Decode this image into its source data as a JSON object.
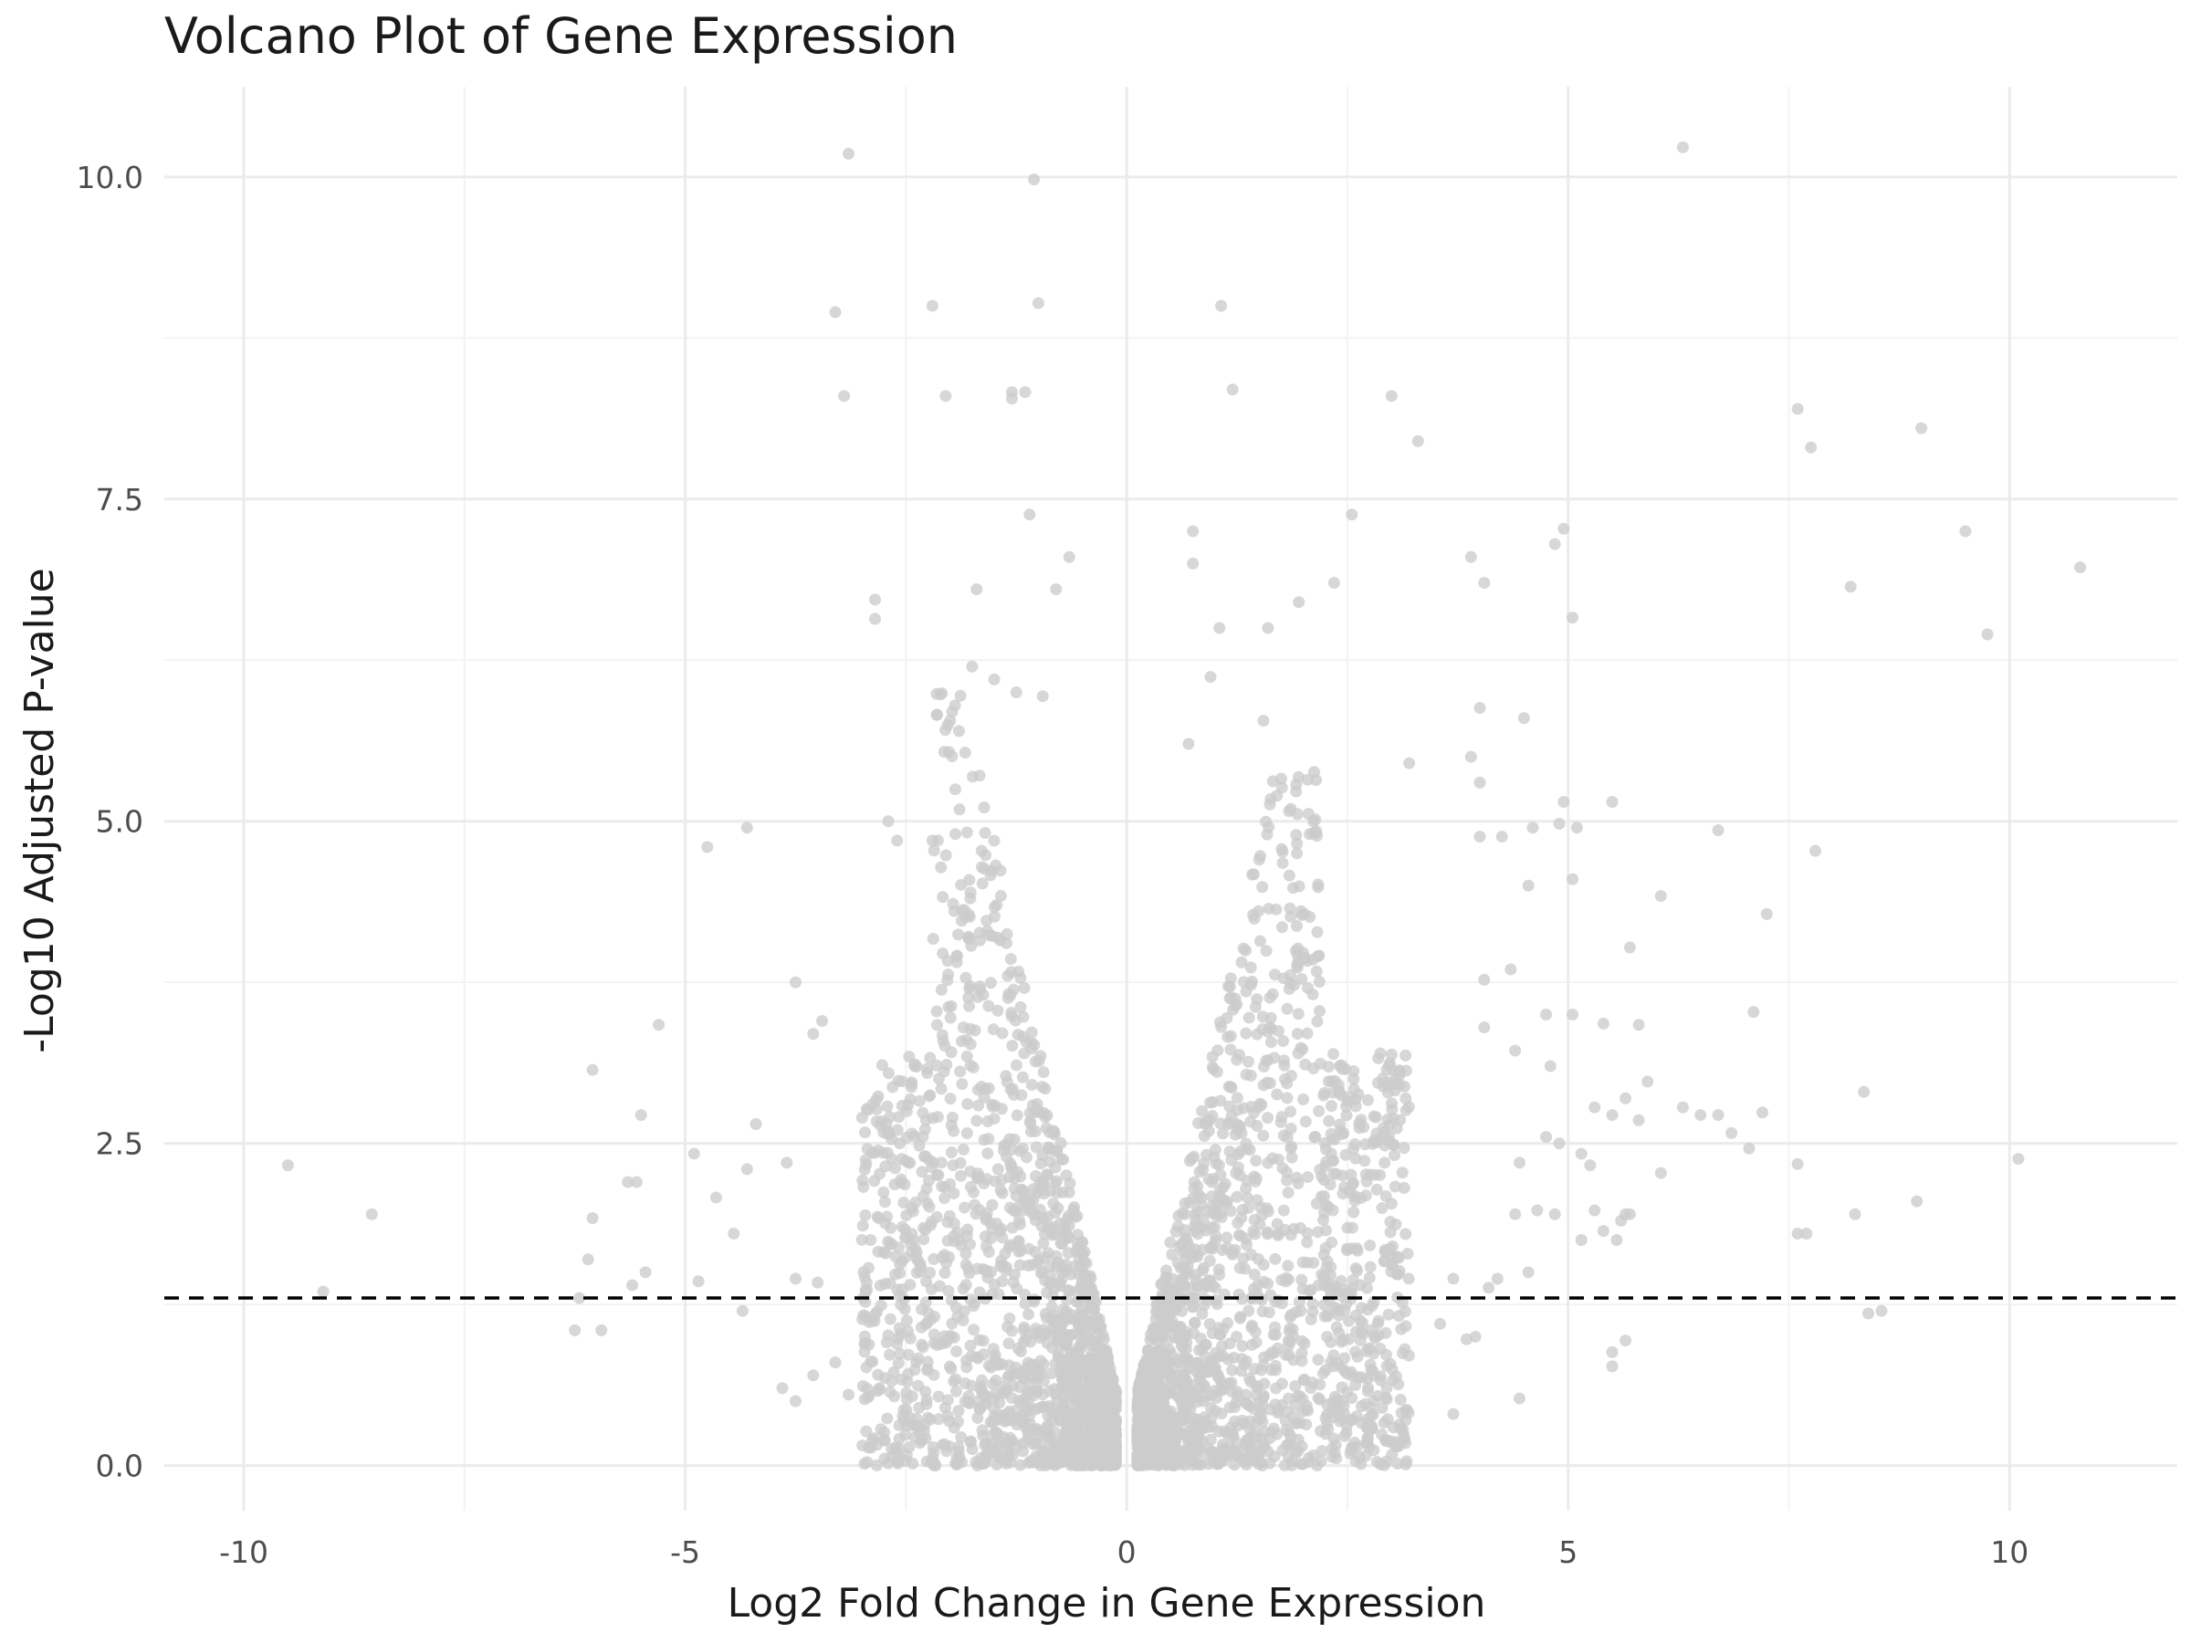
{
  "chart_data": {
    "type": "scatter",
    "title": "Volcano Plot of Gene Expression",
    "xlabel": "Log2 Fold Change in Gene Expression",
    "ylabel": "-Log10 Adjusted P-value",
    "xlim": [
      -10.9,
      11.9
    ],
    "ylim": [
      -0.35,
      10.7
    ],
    "xticks": [
      -10,
      -5,
      0,
      5,
      10
    ],
    "xtick_labels": [
      "-10",
      "-5",
      "0",
      "5",
      "10"
    ],
    "yticks": [
      0,
      2.5,
      5,
      7.5,
      10
    ],
    "ytick_labels": [
      "0.0",
      "2.5",
      "5.0",
      "7.5",
      "10.0"
    ],
    "threshold_line": {
      "y": 1.3,
      "style": "dashed",
      "color": "#000000"
    },
    "grid": true,
    "legend": "none",
    "point_color": "#cccccc",
    "points": [
      [
        -3.15,
        10.18
      ],
      [
        6.3,
        10.23
      ],
      [
        -1.05,
        9.98
      ],
      [
        -3.3,
        8.95
      ],
      [
        -2.2,
        9.0
      ],
      [
        -1.0,
        9.02
      ],
      [
        1.07,
        9.0
      ],
      [
        -3.2,
        8.3
      ],
      [
        -2.05,
        8.3
      ],
      [
        -1.3,
        8.33
      ],
      [
        -1.15,
        8.33
      ],
      [
        -1.3,
        8.28
      ],
      [
        1.2,
        8.35
      ],
      [
        3.0,
        8.3
      ],
      [
        3.3,
        7.95
      ],
      [
        7.6,
        8.2
      ],
      [
        7.75,
        7.9
      ],
      [
        9.0,
        8.05
      ],
      [
        -1.1,
        7.38
      ],
      [
        0.75,
        7.25
      ],
      [
        2.55,
        7.38
      ],
      [
        4.95,
        7.27
      ],
      [
        4.85,
        7.15
      ],
      [
        3.9,
        7.05
      ],
      [
        9.5,
        7.25
      ],
      [
        10.8,
        6.97
      ],
      [
        0.75,
        7.0
      ],
      [
        2.35,
        6.85
      ],
      [
        4.05,
        6.85
      ],
      [
        -2.85,
        6.72
      ],
      [
        -2.85,
        6.57
      ],
      [
        -1.7,
        6.8
      ],
      [
        -0.8,
        6.8
      ],
      [
        -0.65,
        7.05
      ],
      [
        1.95,
        6.7
      ],
      [
        5.05,
        6.58
      ],
      [
        8.2,
        6.82
      ],
      [
        9.75,
        6.45
      ],
      [
        1.05,
        6.5
      ],
      [
        1.6,
        6.5
      ],
      [
        -1.75,
        6.2
      ],
      [
        -1.5,
        6.1
      ],
      [
        -1.25,
        6.0
      ],
      [
        0.95,
        6.12
      ],
      [
        4.0,
        5.88
      ],
      [
        4.5,
        5.8
      ],
      [
        -2.0,
        5.78
      ],
      [
        -1.9,
        5.7
      ],
      [
        -0.95,
        5.97
      ],
      [
        0.7,
        5.6
      ],
      [
        1.55,
        5.78
      ],
      [
        3.2,
        5.45
      ],
      [
        3.9,
        5.5
      ],
      [
        4.0,
        5.3
      ],
      [
        5.5,
        5.15
      ],
      [
        4.95,
        5.15
      ],
      [
        4.9,
        4.98
      ],
      [
        -2.7,
        5.0
      ],
      [
        -2.6,
        4.85
      ],
      [
        -2.2,
        4.85
      ],
      [
        -4.3,
        4.95
      ],
      [
        -4.75,
        4.8
      ],
      [
        4.0,
        4.88
      ],
      [
        4.25,
        4.88
      ],
      [
        4.6,
        4.95
      ],
      [
        5.1,
        4.95
      ],
      [
        6.7,
        4.93
      ],
      [
        5.05,
        4.55
      ],
      [
        4.55,
        4.5
      ],
      [
        6.05,
        4.42
      ],
      [
        7.25,
        4.28
      ],
      [
        7.8,
        4.77
      ],
      [
        5.7,
        4.02
      ],
      [
        4.05,
        3.77
      ],
      [
        4.35,
        3.85
      ],
      [
        7.1,
        3.52
      ],
      [
        5.05,
        3.5
      ],
      [
        4.75,
        3.5
      ],
      [
        5.4,
        3.43
      ],
      [
        5.8,
        3.42
      ],
      [
        4.4,
        3.22
      ],
      [
        4.05,
        3.4
      ],
      [
        4.8,
        3.1
      ],
      [
        -3.75,
        3.75
      ],
      [
        -3.45,
        3.45
      ],
      [
        -3.55,
        3.35
      ],
      [
        -5.3,
        3.42
      ],
      [
        -6.05,
        3.07
      ],
      [
        -5.5,
        2.72
      ],
      [
        -4.65,
        2.08
      ],
      [
        -4.9,
        2.42
      ],
      [
        -4.2,
        2.65
      ],
      [
        -4.3,
        2.3
      ],
      [
        -3.85,
        2.35
      ],
      [
        -9.5,
        2.33
      ],
      [
        -8.55,
        1.95
      ],
      [
        -9.1,
        1.35
      ],
      [
        -6.1,
        1.6
      ],
      [
        -6.05,
        1.92
      ],
      [
        -5.65,
        2.2
      ],
      [
        -5.55,
        2.2
      ],
      [
        -5.45,
        1.5
      ],
      [
        -5.6,
        1.4
      ],
      [
        -4.85,
        1.43
      ],
      [
        -4.45,
        1.8
      ],
      [
        -4.35,
        1.2
      ],
      [
        -6.25,
        1.05
      ],
      [
        -5.95,
        1.05
      ],
      [
        -6.2,
        1.3
      ],
      [
        -3.75,
        1.45
      ],
      [
        -3.5,
        1.42
      ],
      [
        -3.3,
        0.8
      ],
      [
        -3.55,
        0.7
      ],
      [
        -3.9,
        0.6
      ],
      [
        -3.75,
        0.5
      ],
      [
        -3.15,
        0.55
      ],
      [
        -2.8,
        0.6
      ],
      [
        5.9,
        2.98
      ],
      [
        5.65,
        2.85
      ],
      [
        5.8,
        2.68
      ],
      [
        6.5,
        2.72
      ],
      [
        6.7,
        2.72
      ],
      [
        6.85,
        2.58
      ],
      [
        7.05,
        2.46
      ],
      [
        6.3,
        2.78
      ],
      [
        8.35,
        2.9
      ],
      [
        7.2,
        2.74
      ],
      [
        7.6,
        2.34
      ],
      [
        6.05,
        2.27
      ],
      [
        5.3,
        2.78
      ],
      [
        5.5,
        2.72
      ],
      [
        5.25,
        2.33
      ],
      [
        4.45,
        2.35
      ],
      [
        4.9,
        2.5
      ],
      [
        4.75,
        2.55
      ],
      [
        5.15,
        2.42
      ],
      [
        8.95,
        2.05
      ],
      [
        8.25,
        1.95
      ],
      [
        10.1,
        2.38
      ],
      [
        5.6,
        1.9
      ],
      [
        5.65,
        1.95
      ],
      [
        5.3,
        1.98
      ],
      [
        5.15,
        1.75
      ],
      [
        5.55,
        1.75
      ],
      [
        5.4,
        1.82
      ],
      [
        5.7,
        1.95
      ],
      [
        7.6,
        1.8
      ],
      [
        7.7,
        1.8
      ],
      [
        8.4,
        1.18
      ],
      [
        8.55,
        1.2
      ],
      [
        5.5,
        0.88
      ],
      [
        5.5,
        0.77
      ],
      [
        5.65,
        0.97
      ],
      [
        4.85,
        1.95
      ],
      [
        4.65,
        1.98
      ],
      [
        4.4,
        1.95
      ],
      [
        4.55,
        1.5
      ],
      [
        4.2,
        1.45
      ],
      [
        4.1,
        1.38
      ],
      [
        4.45,
        0.52
      ],
      [
        3.85,
        0.98
      ],
      [
        3.95,
        1.0
      ],
      [
        3.55,
        1.1
      ],
      [
        3.7,
        1.45
      ],
      [
        3.7,
        0.4
      ]
    ],
    "dense_clouds": [
      {
        "side": "negative",
        "x_inner": -0.12,
        "x_outer": -3.0,
        "y_max_near_center": 6.0,
        "count": 1700,
        "note": "dense gray cloud of many points"
      },
      {
        "side": "positive",
        "x_inner": 0.12,
        "x_outer": 3.2,
        "y_max_near_center": 5.5,
        "count": 1700,
        "note": "dense gray cloud of many points"
      }
    ]
  }
}
